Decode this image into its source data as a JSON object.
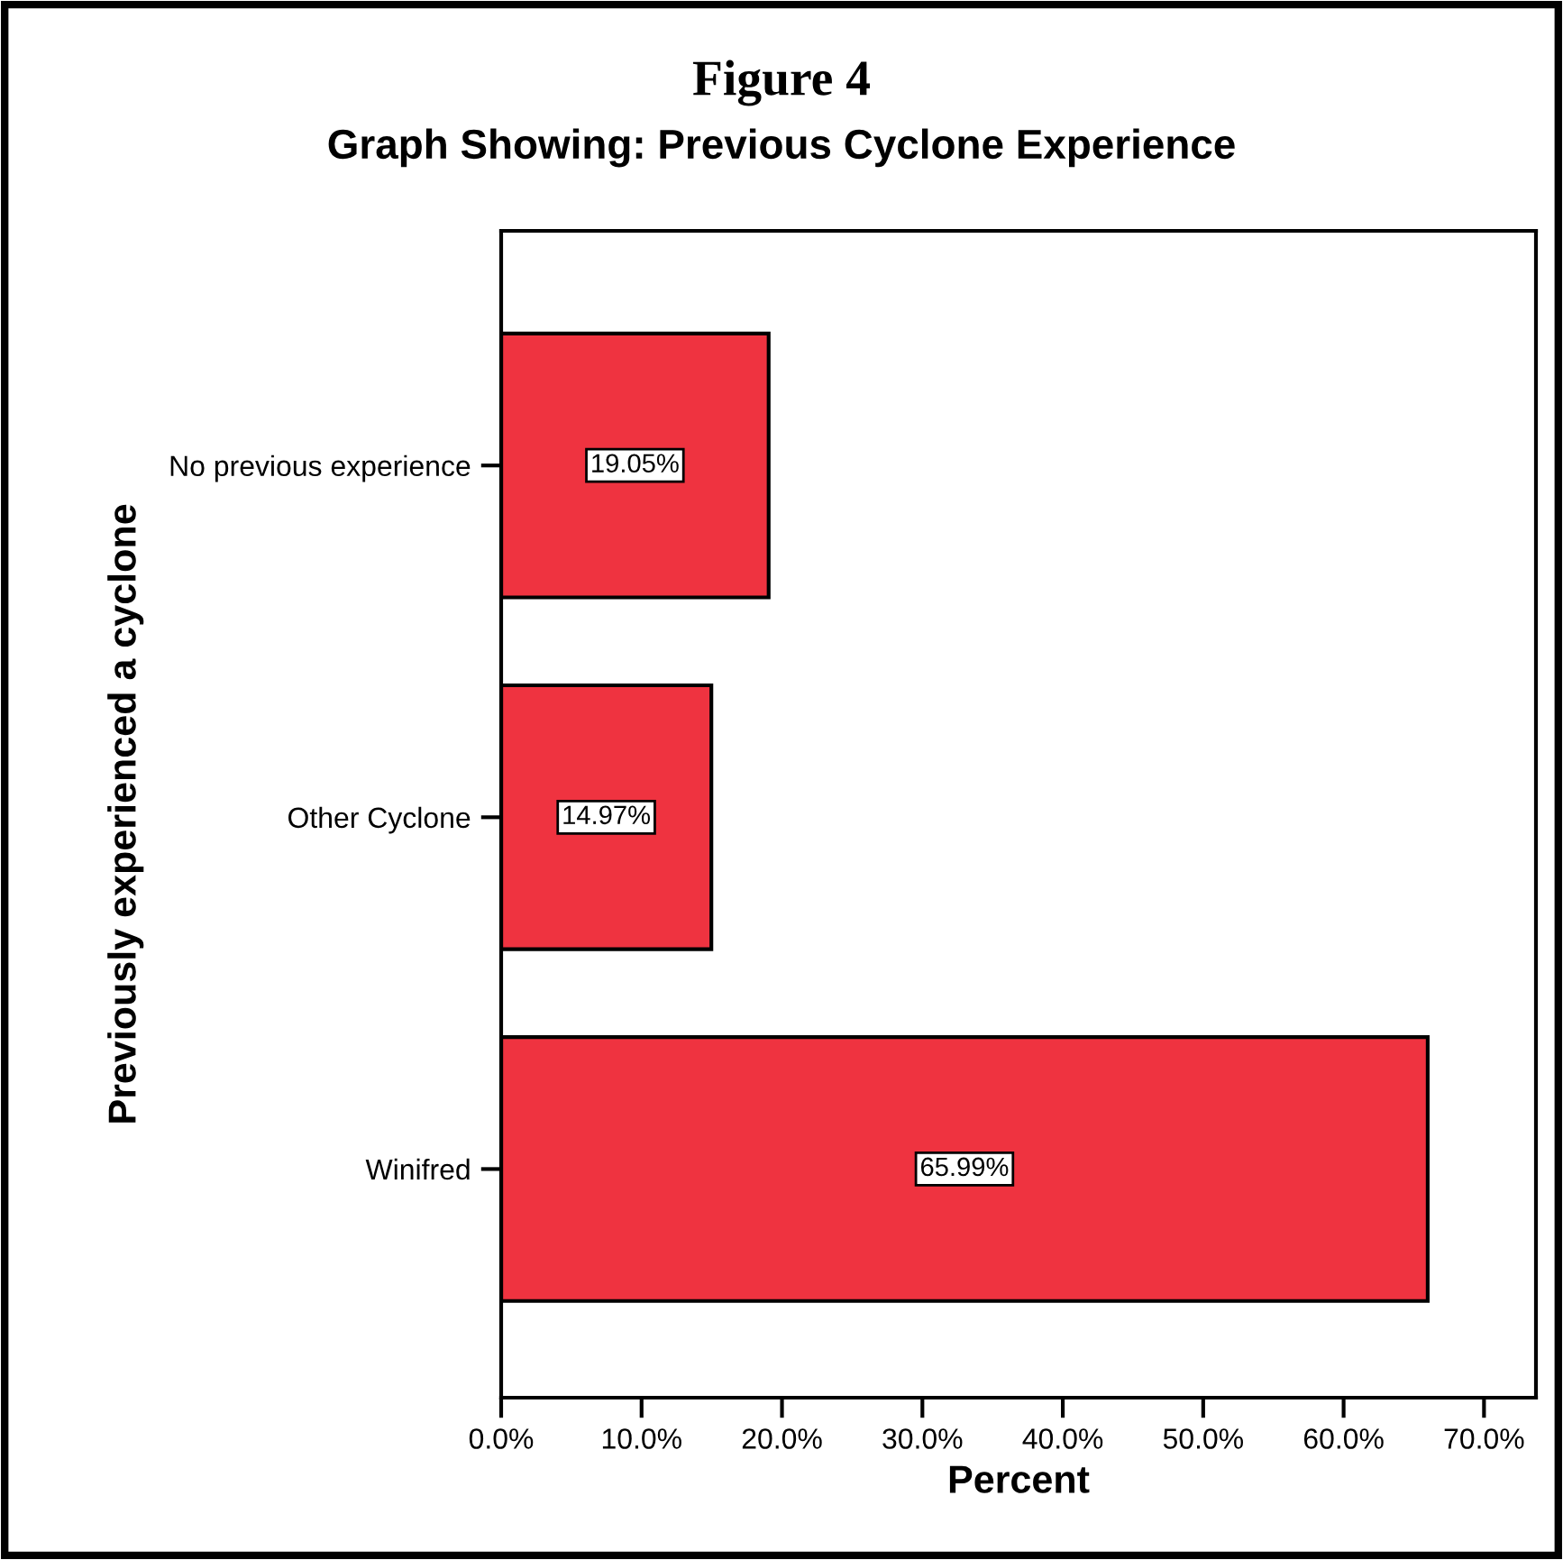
{
  "chart_data": {
    "type": "bar",
    "orientation": "horizontal",
    "title": "Figure 4",
    "subtitle": "Graph Showing: Previous Cyclone Experience",
    "xlabel": "Percent",
    "ylabel": "Previously experienced a cyclone",
    "categories": [
      "No previous experience",
      "Other Cyclone",
      "Winifred"
    ],
    "values": [
      19.05,
      14.97,
      65.99
    ],
    "color": "#ef3340",
    "value_labels": [
      "19.05%",
      "14.97%",
      "65.99%"
    ],
    "xlim": [
      0,
      73.7
    ],
    "xticks": [
      {
        "value": 0,
        "label": "0.0%"
      },
      {
        "value": 10,
        "label": "10.0%"
      },
      {
        "value": 20,
        "label": "20.0%"
      },
      {
        "value": 30,
        "label": "30.0%"
      },
      {
        "value": 40,
        "label": "40.0%"
      },
      {
        "value": 50,
        "label": "50.0%"
      },
      {
        "value": 60,
        "label": "60.0%"
      },
      {
        "value": 70,
        "label": "70.0%"
      }
    ],
    "grid": false,
    "legend": false
  }
}
